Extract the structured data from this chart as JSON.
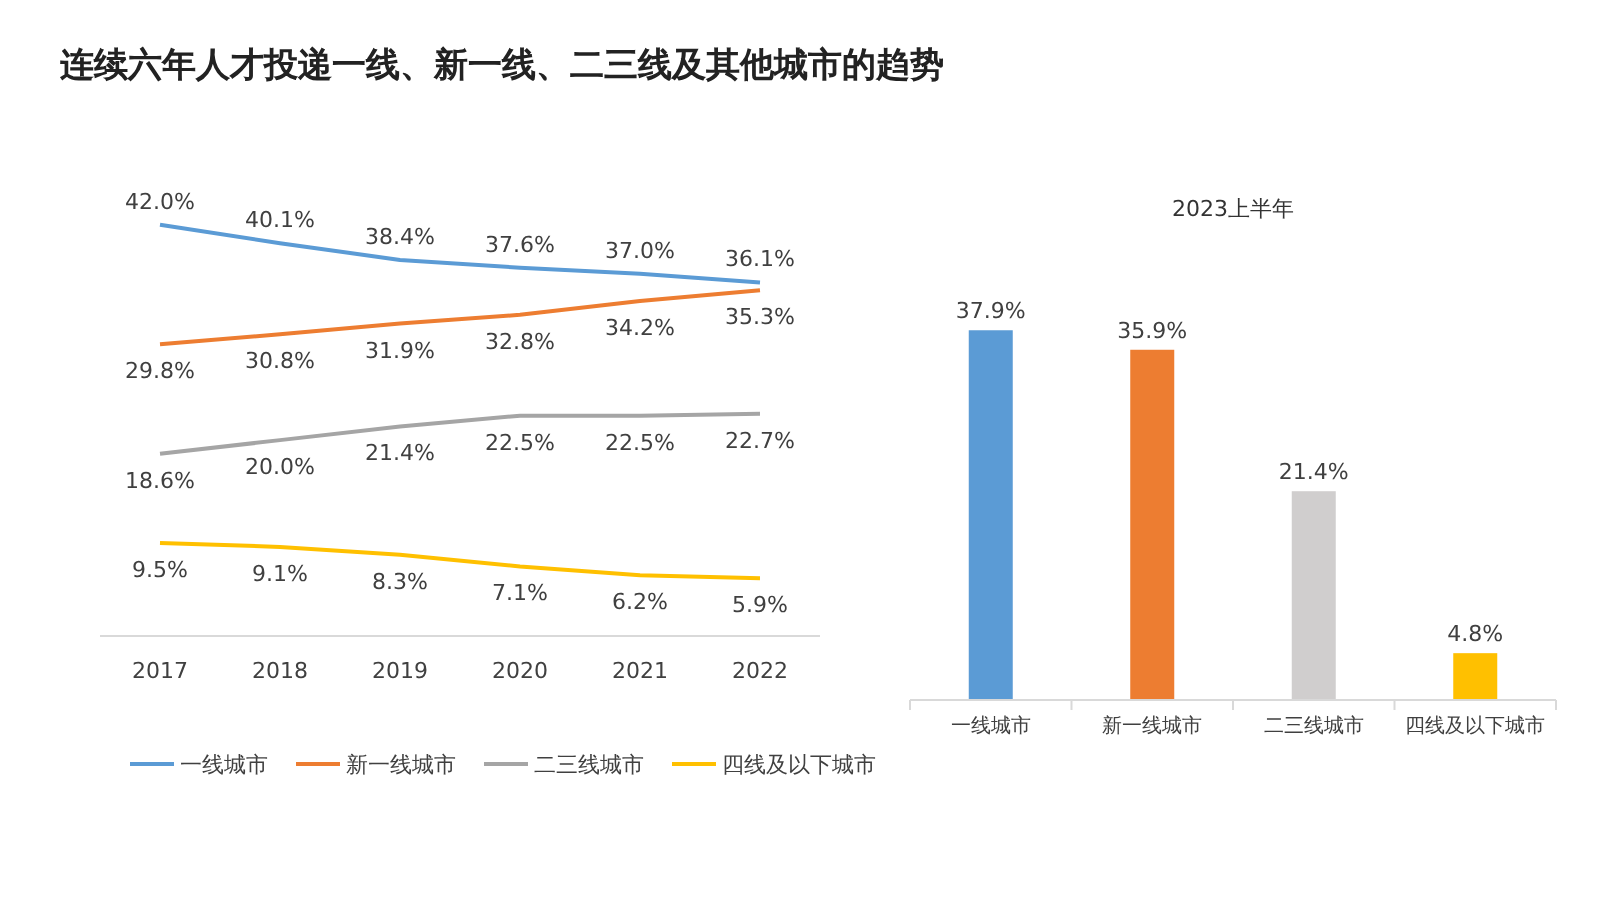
{
  "chart_data": [
    {
      "type": "line",
      "title": "连续六年人才投递一线、新一线、二三线及其他城市的趋势",
      "categories": [
        "2017",
        "2018",
        "2019",
        "2020",
        "2021",
        "2022"
      ],
      "series": [
        {
          "name": "一线城市",
          "color": "#5b9bd5",
          "values": [
            42.0,
            40.1,
            38.4,
            37.6,
            37.0,
            36.1
          ],
          "value_labels": [
            "42.0%",
            "40.1%",
            "38.4%",
            "37.6%",
            "37.0%",
            "36.1%"
          ]
        },
        {
          "name": "新一线城市",
          "color": "#ed7d31",
          "values": [
            29.8,
            30.8,
            31.9,
            32.8,
            34.2,
            35.3
          ],
          "value_labels": [
            "29.8%",
            "30.8%",
            "31.9%",
            "32.8%",
            "34.2%",
            "35.3%"
          ]
        },
        {
          "name": "二三线城市",
          "color": "#a5a5a5",
          "values": [
            18.6,
            20.0,
            21.4,
            22.5,
            22.5,
            22.7
          ],
          "value_labels": [
            "18.6%",
            "20.0%",
            "21.4%",
            "22.5%",
            "22.5%",
            "22.7%"
          ]
        },
        {
          "name": "四线及以下城市",
          "color": "#ffc000",
          "values": [
            9.5,
            9.1,
            8.3,
            7.1,
            6.2,
            5.9
          ],
          "value_labels": [
            "9.5%",
            "9.1%",
            "8.3%",
            "7.1%",
            "6.2%",
            "5.9%"
          ]
        }
      ],
      "legend": "bottom"
    },
    {
      "type": "bar",
      "title": "2023上半年",
      "categories": [
        "一线城市",
        "新一线城市",
        "二三线城市",
        "四线及以下城市"
      ],
      "values": [
        37.9,
        35.9,
        21.4,
        4.8
      ],
      "value_labels": [
        "37.9%",
        "35.9%",
        "21.4%",
        "4.8%"
      ],
      "colors": [
        "#5b9bd5",
        "#ed7d31",
        "#d0cece",
        "#ffc000"
      ]
    }
  ]
}
